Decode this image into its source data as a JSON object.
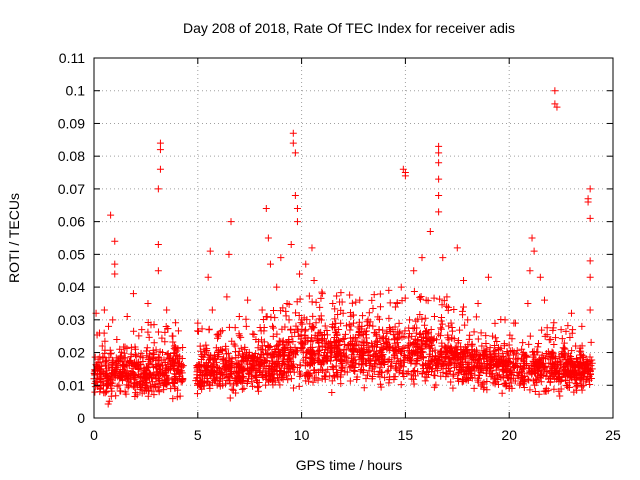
{
  "chart_data": {
    "type": "scatter",
    "title": "Day 208 of 2018, Rate Of TEC Index for receiver adis",
    "xlabel": "GPS time / hours",
    "ylabel": "ROTI / TECUs",
    "xlim": [
      0,
      25
    ],
    "ylim": [
      0,
      0.11
    ],
    "x_ticks": [
      0,
      5,
      10,
      15,
      20,
      25
    ],
    "x_tick_labels": [
      "0",
      "5",
      "10",
      "15",
      "20",
      "25"
    ],
    "y_ticks": [
      0,
      0.01,
      0.02,
      0.03,
      0.04,
      0.05,
      0.06,
      0.07,
      0.08,
      0.09,
      0.1,
      0.11
    ],
    "y_tick_labels": [
      "0",
      "0.01",
      "0.02",
      "0.03",
      "0.04",
      "0.05",
      "0.06",
      "0.07",
      "0.08",
      "0.09",
      "0.1",
      "0.11"
    ],
    "grid": true,
    "marker": "plus",
    "color": "#ff0000",
    "series": [
      {
        "name": "",
        "points": [
          [
            0.0,
            0.012
          ],
          [
            0.1,
            0.032
          ],
          [
            0.2,
            0.018
          ],
          [
            0.3,
            0.009
          ],
          [
            0.4,
            0.022
          ],
          [
            0.5,
            0.033
          ],
          [
            0.6,
            0.015
          ],
          [
            0.7,
            0.028
          ],
          [
            0.8,
            0.011
          ],
          [
            0.9,
            0.03
          ],
          [
            1.0,
            0.054
          ],
          [
            1.0,
            0.047
          ],
          [
            1.0,
            0.044
          ],
          [
            0.8,
            0.062
          ],
          [
            1.1,
            0.024
          ],
          [
            1.2,
            0.013
          ],
          [
            1.3,
            0.019
          ],
          [
            1.5,
            0.008
          ],
          [
            1.6,
            0.031
          ],
          [
            1.7,
            0.016
          ],
          [
            1.9,
            0.038
          ],
          [
            2.0,
            0.021
          ],
          [
            2.1,
            0.01
          ],
          [
            2.3,
            0.027
          ],
          [
            2.4,
            0.014
          ],
          [
            2.6,
            0.035
          ],
          [
            2.7,
            0.018
          ],
          [
            2.9,
            0.023
          ],
          [
            3.0,
            0.012
          ],
          [
            3.1,
            0.045
          ],
          [
            3.1,
            0.053
          ],
          [
            3.1,
            0.07
          ],
          [
            3.2,
            0.076
          ],
          [
            3.2,
            0.082
          ],
          [
            3.2,
            0.084
          ],
          [
            3.3,
            0.02
          ],
          [
            3.5,
            0.033
          ],
          [
            3.6,
            0.015
          ],
          [
            3.8,
            0.025
          ],
          [
            3.9,
            0.009
          ],
          [
            4.0,
            0.019
          ],
          [
            4.1,
            0.014
          ],
          [
            4.2,
            0.011
          ],
          [
            4.3,
            0.016
          ],
          [
            5.0,
            0.029
          ],
          [
            5.1,
            0.013
          ],
          [
            5.3,
            0.021
          ],
          [
            5.5,
            0.043
          ],
          [
            5.6,
            0.051
          ],
          [
            5.7,
            0.033
          ],
          [
            5.9,
            0.017
          ],
          [
            6.0,
            0.025
          ],
          [
            6.2,
            0.01
          ],
          [
            6.4,
            0.037
          ],
          [
            6.5,
            0.05
          ],
          [
            6.6,
            0.06
          ],
          [
            6.8,
            0.022
          ],
          [
            7.0,
            0.031
          ],
          [
            7.2,
            0.015
          ],
          [
            7.4,
            0.036
          ],
          [
            7.6,
            0.012
          ],
          [
            7.8,
            0.024
          ],
          [
            8.0,
            0.018
          ],
          [
            8.1,
            0.033
          ],
          [
            8.3,
            0.064
          ],
          [
            8.4,
            0.055
          ],
          [
            8.5,
            0.047
          ],
          [
            8.6,
            0.028
          ],
          [
            8.8,
            0.04
          ],
          [
            9.0,
            0.049
          ],
          [
            9.1,
            0.021
          ],
          [
            9.3,
            0.035
          ],
          [
            9.5,
            0.053
          ],
          [
            9.6,
            0.087
          ],
          [
            9.6,
            0.084
          ],
          [
            9.7,
            0.081
          ],
          [
            9.7,
            0.068
          ],
          [
            9.8,
            0.064
          ],
          [
            9.8,
            0.06
          ],
          [
            9.9,
            0.044
          ],
          [
            10.0,
            0.03
          ],
          [
            10.2,
            0.047
          ],
          [
            10.4,
            0.016
          ],
          [
            10.5,
            0.052
          ],
          [
            10.6,
            0.042
          ],
          [
            10.8,
            0.026
          ],
          [
            11.0,
            0.038
          ],
          [
            11.2,
            0.019
          ],
          [
            11.5,
            0.035
          ],
          [
            11.7,
            0.023
          ],
          [
            12.0,
            0.032
          ],
          [
            12.2,
            0.014
          ],
          [
            12.5,
            0.029
          ],
          [
            12.8,
            0.036
          ],
          [
            13.0,
            0.021
          ],
          [
            13.2,
            0.03
          ],
          [
            13.4,
            0.012
          ],
          [
            13.6,
            0.025
          ],
          [
            13.8,
            0.034
          ],
          [
            14.0,
            0.018
          ],
          [
            14.2,
            0.039
          ],
          [
            14.4,
            0.027
          ],
          [
            14.6,
            0.035
          ],
          [
            14.8,
            0.04
          ],
          [
            14.9,
            0.076
          ],
          [
            15.0,
            0.075
          ],
          [
            15.0,
            0.074
          ],
          [
            15.2,
            0.03
          ],
          [
            15.4,
            0.045
          ],
          [
            15.6,
            0.024
          ],
          [
            15.8,
            0.049
          ],
          [
            16.0,
            0.036
          ],
          [
            16.2,
            0.057
          ],
          [
            16.4,
            0.031
          ],
          [
            16.6,
            0.083
          ],
          [
            16.6,
            0.081
          ],
          [
            16.6,
            0.078
          ],
          [
            16.6,
            0.073
          ],
          [
            16.6,
            0.068
          ],
          [
            16.6,
            0.063
          ],
          [
            16.8,
            0.049
          ],
          [
            17.0,
            0.037
          ],
          [
            17.2,
            0.029
          ],
          [
            17.5,
            0.052
          ],
          [
            17.8,
            0.042
          ],
          [
            18.0,
            0.03
          ],
          [
            18.2,
            0.022
          ],
          [
            18.5,
            0.035
          ],
          [
            18.8,
            0.019
          ],
          [
            19.0,
            0.043
          ],
          [
            19.2,
            0.025
          ],
          [
            19.5,
            0.018
          ],
          [
            19.8,
            0.03
          ],
          [
            20.0,
            0.014
          ],
          [
            20.3,
            0.029
          ],
          [
            20.6,
            0.021
          ],
          [
            20.9,
            0.035
          ],
          [
            21.0,
            0.045
          ],
          [
            21.1,
            0.055
          ],
          [
            21.2,
            0.051
          ],
          [
            21.5,
            0.043
          ],
          [
            21.7,
            0.036
          ],
          [
            22.0,
            0.024
          ],
          [
            22.2,
            0.1
          ],
          [
            22.2,
            0.096
          ],
          [
            22.3,
            0.095
          ],
          [
            22.5,
            0.027
          ],
          [
            22.8,
            0.018
          ],
          [
            23.0,
            0.032
          ],
          [
            23.2,
            0.022
          ],
          [
            23.5,
            0.028
          ],
          [
            23.8,
            0.067
          ],
          [
            23.8,
            0.066
          ],
          [
            23.9,
            0.07
          ],
          [
            23.9,
            0.061
          ],
          [
            23.9,
            0.048
          ],
          [
            23.9,
            0.043
          ],
          [
            23.9,
            0.033
          ],
          [
            24.0,
            0.015
          ]
        ]
      }
    ],
    "dense_band": {
      "segments": [
        [
          0.0,
          4.3
        ],
        [
          4.9,
          24.0
        ]
      ],
      "baseline": [
        [
          0,
          0.013
        ],
        [
          2,
          0.014
        ],
        [
          4,
          0.014
        ],
        [
          5,
          0.014
        ],
        [
          7,
          0.015
        ],
        [
          9,
          0.017
        ],
        [
          10,
          0.019
        ],
        [
          12,
          0.02
        ],
        [
          14,
          0.019
        ],
        [
          16,
          0.02
        ],
        [
          18,
          0.017
        ],
        [
          20,
          0.015
        ],
        [
          22,
          0.015
        ],
        [
          24,
          0.014
        ]
      ],
      "spread": [
        [
          0,
          0.012
        ],
        [
          4,
          0.013
        ],
        [
          5,
          0.012
        ],
        [
          8,
          0.013
        ],
        [
          10,
          0.016
        ],
        [
          12,
          0.016
        ],
        [
          16,
          0.016
        ],
        [
          18,
          0.014
        ],
        [
          20,
          0.012
        ],
        [
          24,
          0.012
        ]
      ],
      "count": 2600
    }
  }
}
